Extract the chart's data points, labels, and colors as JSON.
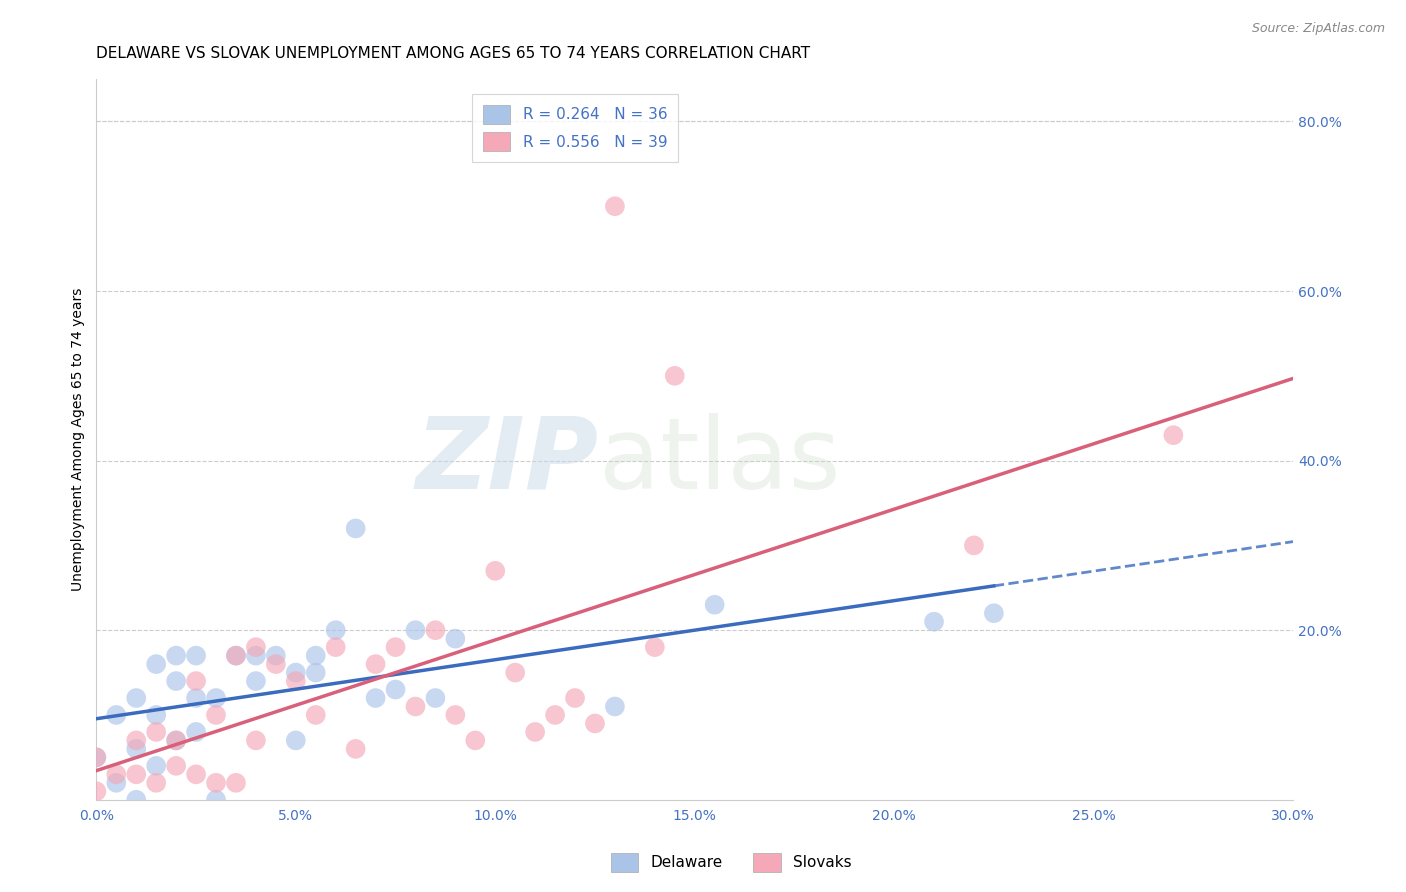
{
  "title": "DELAWARE VS SLOVAK UNEMPLOYMENT AMONG AGES 65 TO 74 YEARS CORRELATION CHART",
  "source": "Source: ZipAtlas.com",
  "ylabel": "Unemployment Among Ages 65 to 74 years",
  "xlim": [
    0.0,
    0.3
  ],
  "ylim": [
    0.0,
    0.85
  ],
  "right_yticks": [
    0.2,
    0.4,
    0.6,
    0.8
  ],
  "right_ytick_labels": [
    "20.0%",
    "40.0%",
    "60.0%",
    "80.0%"
  ],
  "x_tick_vals": [
    0.0,
    0.05,
    0.1,
    0.15,
    0.2,
    0.25,
    0.3
  ],
  "x_tick_labels": [
    "0.0%",
    "5.0%",
    "10.0%",
    "15.0%",
    "20.0%",
    "25.0%",
    "30.0%"
  ],
  "delaware_R": 0.264,
  "delaware_N": 36,
  "slovak_R": 0.556,
  "slovak_N": 39,
  "delaware_color": "#aac4e8",
  "delaware_line_color": "#3a6bbf",
  "slovak_color": "#f4a8b8",
  "slovak_line_color": "#d9607a",
  "legend_label_delaware": "Delaware",
  "legend_label_slovak": "Slovaks",
  "delaware_x": [
    0.0,
    0.005,
    0.005,
    0.01,
    0.01,
    0.01,
    0.015,
    0.015,
    0.015,
    0.02,
    0.02,
    0.02,
    0.025,
    0.025,
    0.025,
    0.03,
    0.03,
    0.035,
    0.04,
    0.04,
    0.045,
    0.05,
    0.05,
    0.055,
    0.055,
    0.06,
    0.065,
    0.07,
    0.075,
    0.08,
    0.085,
    0.09,
    0.13,
    0.155,
    0.21,
    0.225
  ],
  "delaware_y": [
    0.05,
    0.02,
    0.1,
    0.0,
    0.06,
    0.12,
    0.04,
    0.1,
    0.16,
    0.07,
    0.14,
    0.17,
    0.08,
    0.12,
    0.17,
    0.0,
    0.12,
    0.17,
    0.14,
    0.17,
    0.17,
    0.07,
    0.15,
    0.15,
    0.17,
    0.2,
    0.32,
    0.12,
    0.13,
    0.2,
    0.12,
    0.19,
    0.11,
    0.23,
    0.21,
    0.22
  ],
  "slovak_x": [
    0.0,
    0.0,
    0.005,
    0.01,
    0.01,
    0.015,
    0.015,
    0.02,
    0.02,
    0.025,
    0.025,
    0.03,
    0.03,
    0.035,
    0.035,
    0.04,
    0.04,
    0.045,
    0.05,
    0.055,
    0.06,
    0.065,
    0.07,
    0.075,
    0.08,
    0.085,
    0.09,
    0.095,
    0.1,
    0.105,
    0.11,
    0.115,
    0.12,
    0.125,
    0.13,
    0.14,
    0.145,
    0.22,
    0.27
  ],
  "slovak_y": [
    0.01,
    0.05,
    0.03,
    0.03,
    0.07,
    0.02,
    0.08,
    0.04,
    0.07,
    0.03,
    0.14,
    0.02,
    0.1,
    0.02,
    0.17,
    0.07,
    0.18,
    0.16,
    0.14,
    0.1,
    0.18,
    0.06,
    0.16,
    0.18,
    0.11,
    0.2,
    0.1,
    0.07,
    0.27,
    0.15,
    0.08,
    0.1,
    0.12,
    0.09,
    0.7,
    0.18,
    0.5,
    0.3,
    0.43
  ],
  "title_fontsize": 11,
  "axis_label_fontsize": 10,
  "tick_fontsize": 10,
  "legend_fontsize": 11,
  "source_fontsize": 9,
  "grid_color": "#cccccc",
  "tick_color": "#4472c4"
}
